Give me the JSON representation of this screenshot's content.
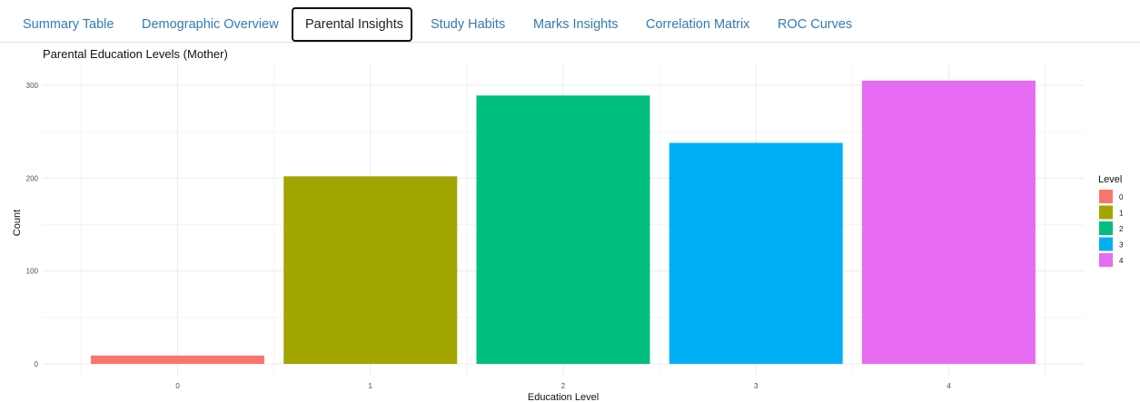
{
  "tabs": [
    {
      "label": "Summary Table",
      "active": false
    },
    {
      "label": "Demographic Overview",
      "active": false
    },
    {
      "label": "Parental Insights",
      "active": true
    },
    {
      "label": "Study Habits",
      "active": false
    },
    {
      "label": "Marks Insights",
      "active": false
    },
    {
      "label": "Correlation Matrix",
      "active": false
    },
    {
      "label": "ROC Curves",
      "active": false
    }
  ],
  "chart_data": {
    "type": "bar",
    "title": "Parental Education Levels (Mother)",
    "xlabel": "Education Level",
    "ylabel": "Count",
    "categories": [
      "0",
      "1",
      "2",
      "3",
      "4"
    ],
    "values": [
      9,
      202,
      289,
      238,
      305
    ],
    "colors": [
      "#F8766D",
      "#A3A500",
      "#00BF7D",
      "#00B0F6",
      "#E76BF3"
    ],
    "ylim": [
      0,
      315
    ],
    "yticks": [
      0,
      100,
      200,
      300
    ],
    "grid": true,
    "legend": {
      "title": "Level",
      "entries": [
        "0",
        "1",
        "2",
        "3",
        "4"
      ],
      "placement": "right"
    }
  }
}
